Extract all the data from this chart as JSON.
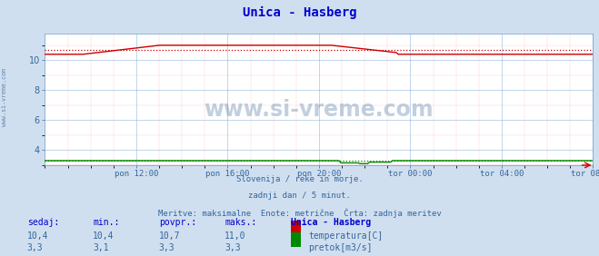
{
  "title": "Unica - Hasberg",
  "title_color": "#0000cc",
  "bg_color": "#d0dff0",
  "plot_bg_color": "#ffffff",
  "grid_color_major": "#6699cc",
  "grid_color_minor": "#ffaaaa",
  "tick_color": "#336699",
  "watermark_text": "www.si-vreme.com",
  "watermark_color": "#336699",
  "sidebar_text": "www.si-vreme.com",
  "sidebar_color": "#336699",
  "ylim": [
    3.0,
    11.8
  ],
  "yticks": [
    4,
    6,
    8,
    10
  ],
  "x_labels": [
    "pon 12:00",
    "pon 16:00",
    "pon 20:00",
    "tor 00:00",
    "tor 04:00",
    "tor 08:00"
  ],
  "n_points": 288,
  "temp_avg": 10.7,
  "flow_avg": 3.3,
  "temp_color": "#cc0000",
  "flow_color": "#008800",
  "blue_line_color": "#0000cc",
  "subtitle_lines": [
    "Slovenija / reke in morje.",
    "zadnji dan / 5 minut.",
    "Meritve: maksimalne  Enote: metrične  Črta: zadnja meritev"
  ],
  "subtitle_color": "#336699",
  "table_header": [
    "sedaj:",
    "min.:",
    "povpr.:",
    "maks.:",
    "Unica - Hasberg"
  ],
  "table_header_color": "#0000cc",
  "table_rows": [
    [
      "10,4",
      "10,4",
      "10,7",
      "11,0"
    ],
    [
      "3,3",
      "3,1",
      "3,3",
      "3,3"
    ]
  ],
  "table_data_color": "#336699",
  "legend_labels": [
    "temperatura[C]",
    "pretok[m3/s]"
  ],
  "legend_colors": [
    "#cc0000",
    "#008800"
  ]
}
